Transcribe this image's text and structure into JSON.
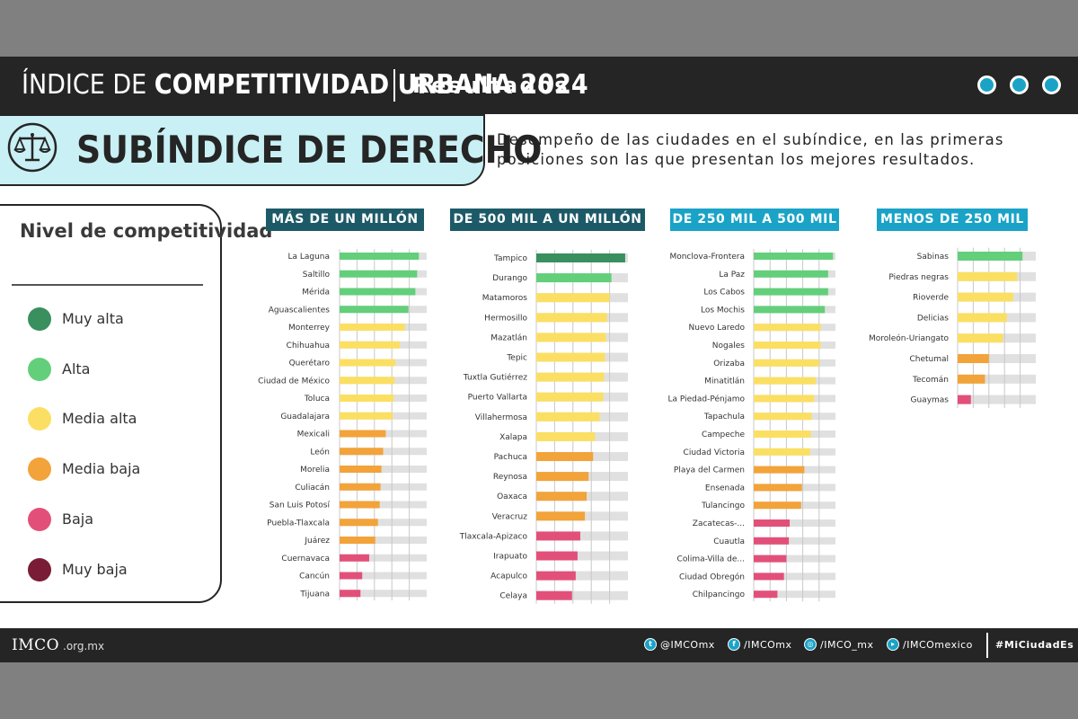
{
  "header": {
    "title_light": "ÍNDICE DE",
    "title_bold": "COMPETITIVIDAD URBANA 2024",
    "subtitle": "Resultados"
  },
  "banner": {
    "icon": "scales-of-justice-icon",
    "title": "SUBÍNDICE DE DERECHO",
    "description": "Desempeño de las ciudades en el subíndice, en las primeras posiciones son las que presentan los mejores resultados."
  },
  "legend": {
    "title": "Nivel de competitividad",
    "items": [
      {
        "label": "Muy alta",
        "color": "#3a8f5f"
      },
      {
        "label": "Alta",
        "color": "#63cf7b"
      },
      {
        "label": "Media alta",
        "color": "#fbdf63"
      },
      {
        "label": "Media baja",
        "color": "#f2a33a"
      },
      {
        "label": "Baja",
        "color": "#e2507a"
      },
      {
        "label": "Muy baja",
        "color": "#7a1c36"
      }
    ]
  },
  "colors": {
    "track": "#e0e0e0",
    "grid": "#c8c8c8",
    "header_bg": "#252525",
    "accent": "#1aa3c7",
    "panel_dark": "#1d5a68",
    "panel_light": "#1aa3c7"
  },
  "chart_data": [
    {
      "type": "bar",
      "orientation": "horizontal",
      "title": "MÁS DE UN MILLÓN",
      "xlim": [
        0,
        100
      ],
      "grid": true,
      "categories": [
        "La Laguna",
        "Saltillo",
        "Mérida",
        "Aguascalientes",
        "Monterrey",
        "Chihuahua",
        "Querétaro",
        "Ciudad de México",
        "Toluca",
        "Guadalajara",
        "Mexicali",
        "León",
        "Morelia",
        "Culiacán",
        "San Luis Potosí",
        "Puebla-Tlaxcala",
        "Juárez",
        "Cuernavaca",
        "Cancún",
        "Tijuana"
      ],
      "values": [
        91,
        89,
        87,
        79,
        75,
        69,
        64,
        63,
        62,
        61,
        53,
        50,
        48,
        47,
        46,
        44,
        41,
        34,
        26,
        24
      ],
      "levels": [
        "Alta",
        "Alta",
        "Alta",
        "Alta",
        "Media alta",
        "Media alta",
        "Media alta",
        "Media alta",
        "Media alta",
        "Media alta",
        "Media baja",
        "Media baja",
        "Media baja",
        "Media baja",
        "Media baja",
        "Media baja",
        "Media baja",
        "Baja",
        "Baja",
        "Baja"
      ]
    },
    {
      "type": "bar",
      "orientation": "horizontal",
      "title": "DE 500 MIL A UN MILLÓN",
      "xlim": [
        0,
        100
      ],
      "grid": true,
      "categories": [
        "Tampico",
        "Durango",
        "Matamoros",
        "Hermosillo",
        "Mazatlán",
        "Tepic",
        "Tuxtla Gutiérrez",
        "Puerto Vallarta",
        "Villahermosa",
        "Xalapa",
        "Pachuca",
        "Reynosa",
        "Oaxaca",
        "Veracruz",
        "Tlaxcala-Apizaco",
        "Irapuato",
        "Acapulco",
        "Celaya"
      ],
      "values": [
        97,
        82,
        80,
        77,
        76,
        75,
        74,
        73,
        69,
        64,
        62,
        57,
        55,
        53,
        48,
        45,
        43,
        39
      ],
      "levels": [
        "Muy alta",
        "Alta",
        "Media alta",
        "Media alta",
        "Media alta",
        "Media alta",
        "Media alta",
        "Media alta",
        "Media alta",
        "Media alta",
        "Media baja",
        "Media baja",
        "Media baja",
        "Media baja",
        "Baja",
        "Baja",
        "Baja",
        "Baja"
      ]
    },
    {
      "type": "bar",
      "orientation": "horizontal",
      "title": "DE 250 MIL A 500 MIL",
      "xlim": [
        0,
        100
      ],
      "grid": true,
      "categories": [
        "Monclova-Frontera",
        "La Paz",
        "Los Cabos",
        "Los Mochis",
        "Nuevo Laredo",
        "Nogales",
        "Orizaba",
        "Minatitlán",
        "La Piedad-Pénjamo",
        "Tapachula",
        "Campeche",
        "Ciudad Victoria",
        "Playa del Carmen",
        "Ensenada",
        "Tulancingo",
        "Zacatecas-...",
        "Cuautla",
        "Colima-Villa de...",
        "Ciudad Obregón",
        "Chilpancingo"
      ],
      "values": [
        97,
        91,
        91,
        87,
        82,
        82,
        80,
        76,
        74,
        71,
        70,
        69,
        62,
        59,
        58,
        44,
        43,
        40,
        37,
        29
      ],
      "levels": [
        "Alta",
        "Alta",
        "Alta",
        "Alta",
        "Media alta",
        "Media alta",
        "Media alta",
        "Media alta",
        "Media alta",
        "Media alta",
        "Media alta",
        "Media alta",
        "Media baja",
        "Media baja",
        "Media baja",
        "Baja",
        "Baja",
        "Baja",
        "Baja",
        "Baja"
      ]
    },
    {
      "type": "bar",
      "orientation": "horizontal",
      "title": "MENOS DE 250 MIL",
      "xlim": [
        0,
        100
      ],
      "grid": true,
      "categories": [
        "Sabinas",
        "Piedras negras",
        "Rioverde",
        "Delicias",
        "Moroleón-Uriangato",
        "Chetumal",
        "Tecomán",
        "Guaymas"
      ],
      "values": [
        83,
        76,
        71,
        63,
        58,
        40,
        35,
        17
      ],
      "levels": [
        "Alta",
        "Media alta",
        "Media alta",
        "Media alta",
        "Media alta",
        "Media baja",
        "Media baja",
        "Baja"
      ]
    }
  ],
  "footer": {
    "logo": "IMCO",
    "domain": ".org.mx",
    "social": [
      {
        "icon": "twitter-icon",
        "label": "@IMCOmx"
      },
      {
        "icon": "facebook-icon",
        "label": "/IMCOmx"
      },
      {
        "icon": "instagram-icon",
        "label": "/IMCO_mx"
      },
      {
        "icon": "youtube-icon",
        "label": "/IMCOmexico"
      }
    ],
    "hashtag": "#MiCiudadEs"
  }
}
